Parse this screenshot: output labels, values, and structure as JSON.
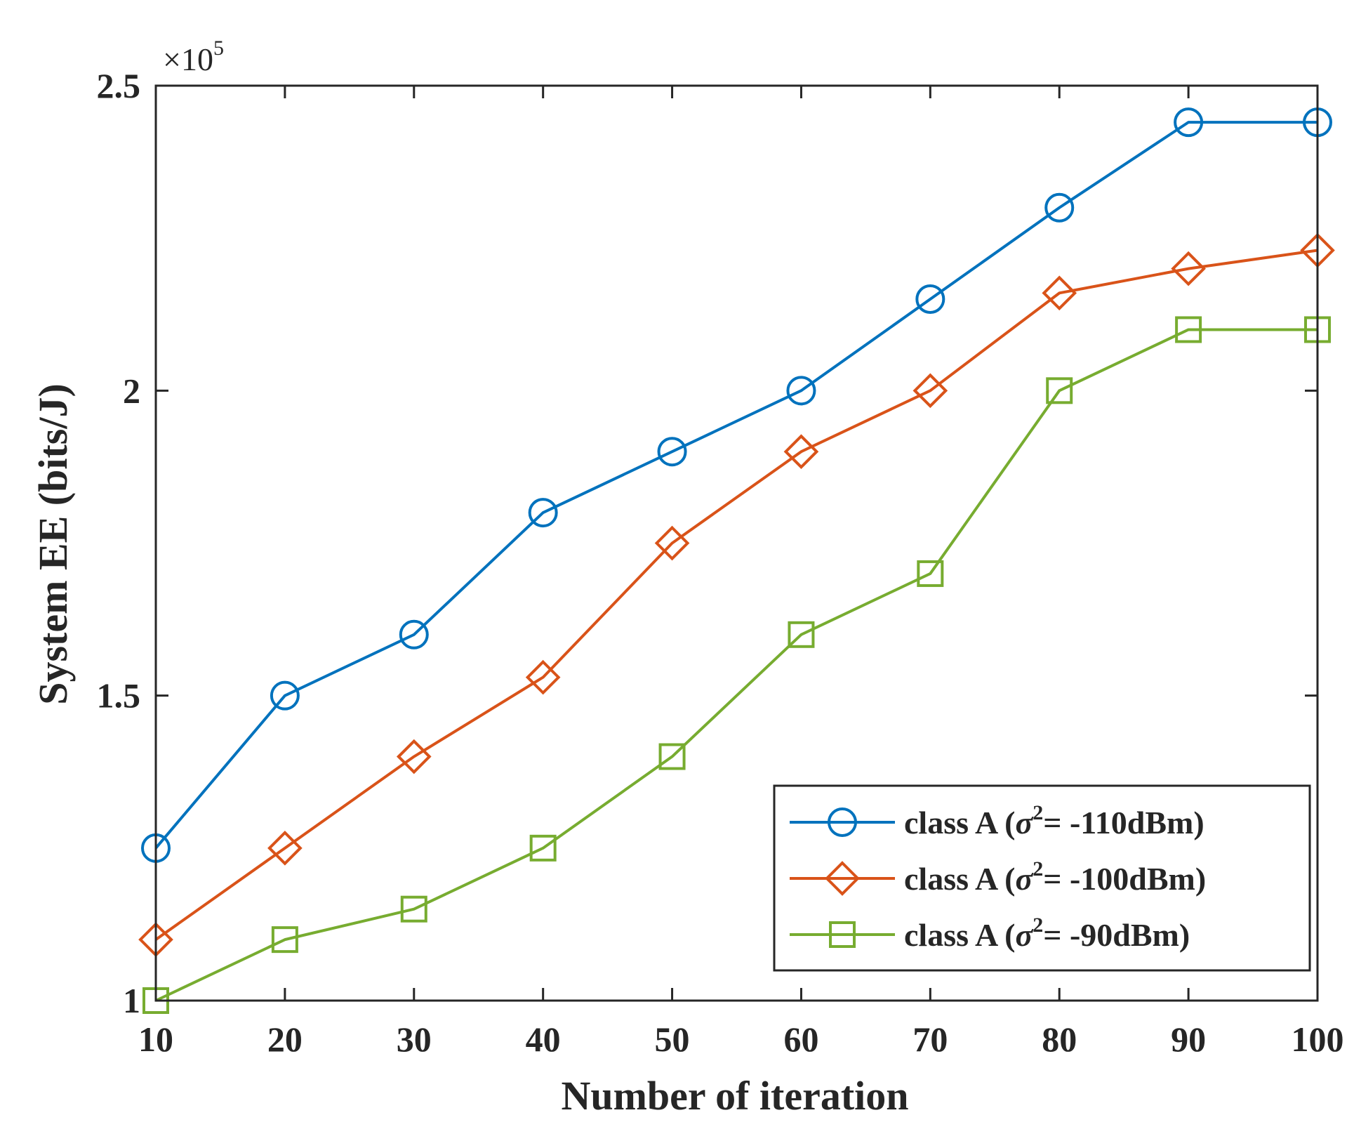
{
  "chart_data": {
    "type": "line",
    "title": "",
    "xlabel": "Number of iteration",
    "ylabel": "System EE (bits/J)",
    "xlim": [
      10,
      100
    ],
    "ylim": [
      1.0,
      2.5
    ],
    "y_multiplier": {
      "base": "×10",
      "exponent": "5"
    },
    "x_ticks": [
      10,
      20,
      30,
      40,
      50,
      60,
      70,
      80,
      90,
      100
    ],
    "y_ticks": [
      1,
      1.5,
      2,
      2.5
    ],
    "x_tick_labels": [
      "10",
      "20",
      "30",
      "40",
      "50",
      "60",
      "70",
      "80",
      "90",
      "100"
    ],
    "y_tick_labels": [
      "1",
      "1.5",
      "2",
      "2.5"
    ],
    "x": [
      10,
      20,
      30,
      40,
      50,
      60,
      70,
      80,
      90,
      100
    ],
    "grid": false,
    "legend_position": "bottom-right",
    "series": [
      {
        "name": "class A (σ2= -110dBm)",
        "label_prefix": "class A (",
        "label_sigma": "σ",
        "label_sup": "2",
        "label_suffix": "= -110dBm)",
        "color": "#0072BD",
        "marker": "circle",
        "values": [
          1.25,
          1.5,
          1.6,
          1.8,
          1.9,
          2.0,
          2.15,
          2.3,
          2.44,
          2.44
        ]
      },
      {
        "name": "class A (σ2= -100dBm)",
        "label_prefix": "class A (",
        "label_sigma": "σ",
        "label_sup": "2",
        "label_suffix": "= -100dBm)",
        "color": "#D95319",
        "marker": "diamond",
        "values": [
          1.1,
          1.25,
          1.4,
          1.53,
          1.75,
          1.9,
          2.0,
          2.16,
          2.2,
          2.23
        ]
      },
      {
        "name": "class A (σ2= -90dBm)",
        "label_prefix": "class A (",
        "label_sigma": "σ",
        "label_sup": "2",
        "label_suffix": "= -90dBm)",
        "color": "#77AC30",
        "marker": "square",
        "values": [
          1.0,
          1.1,
          1.15,
          1.25,
          1.4,
          1.6,
          1.7,
          2.0,
          2.1,
          2.1
        ]
      }
    ]
  }
}
